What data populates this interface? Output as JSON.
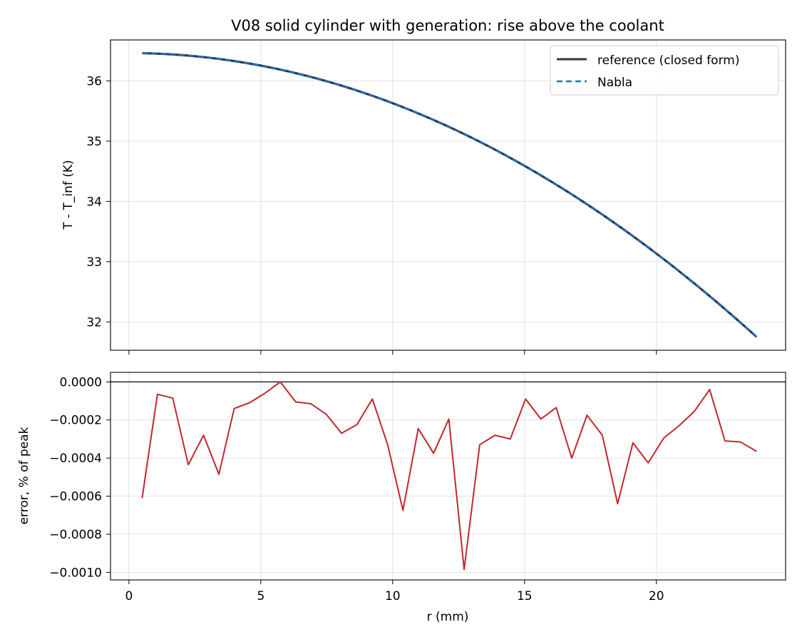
{
  "chart_data": [
    {
      "type": "line",
      "title": "V08 solid cylinder with generation: rise above the coolant",
      "xlabel": "",
      "ylabel": "T - T_inf (K)",
      "xlim": [
        -0.7,
        24.9
      ],
      "ylim": [
        31.53,
        36.68
      ],
      "x_ticks": [
        0,
        5,
        10,
        15,
        20
      ],
      "y_ticks": [
        32,
        33,
        34,
        35,
        36
      ],
      "y_tick_labels": [
        "32",
        "33",
        "34",
        "35",
        "36"
      ],
      "grid": true,
      "legend_position": "top-right",
      "x": [
        0.5,
        23.8
      ],
      "series": [
        {
          "name": "reference (closed form)",
          "style": "solid",
          "color": "#2e3a4a",
          "curve": "quadratic",
          "values": [
            36.46,
            31.75
          ]
        },
        {
          "name": "Nabla",
          "style": "dashed",
          "color": "#1f6fc5",
          "curve": "quadratic",
          "values": [
            36.46,
            31.75
          ]
        }
      ]
    },
    {
      "type": "line",
      "title": "",
      "xlabel": "r (mm)",
      "ylabel": "error, % of peak",
      "xlim": [
        -0.7,
        24.9
      ],
      "ylim": [
        -0.00104,
        5e-05
      ],
      "x_ticks": [
        0,
        5,
        10,
        15,
        20
      ],
      "x_tick_labels": [
        "0",
        "5",
        "10",
        "15",
        "20"
      ],
      "y_ticks": [
        0.0,
        -0.0002,
        -0.0004,
        -0.0006,
        -0.0008,
        -0.001
      ],
      "y_tick_labels": [
        "0.0000",
        "−0.0002",
        "−0.0004",
        "−0.0006",
        "−0.0008",
        "−0.0010"
      ],
      "grid": true,
      "zero_line": true,
      "color": "#c1272d",
      "x": [
        0.5,
        1.08,
        1.66,
        2.25,
        2.83,
        3.41,
        3.99,
        4.57,
        5.15,
        5.74,
        6.32,
        6.9,
        7.48,
        8.06,
        8.64,
        9.23,
        9.81,
        10.39,
        10.97,
        11.55,
        12.13,
        12.71,
        13.3,
        13.88,
        14.46,
        15.04,
        15.62,
        16.2,
        16.79,
        17.37,
        17.95,
        18.53,
        19.11,
        19.69,
        20.28,
        20.86,
        21.44,
        22.02,
        22.6,
        23.18,
        23.8
      ],
      "values": [
        -0.00061,
        -6.5e-05,
        -8.5e-05,
        -0.000435,
        -0.00028,
        -0.000485,
        -0.00014,
        -0.00011,
        -6e-05,
        0.0,
        -0.000105,
        -0.000115,
        -0.00017,
        -0.00027,
        -0.000225,
        -9e-05,
        -0.00033,
        -0.000675,
        -0.000245,
        -0.000375,
        -0.000195,
        -0.000985,
        -0.00033,
        -0.00028,
        -0.0003,
        -9e-05,
        -0.000195,
        -0.000135,
        -0.0004,
        -0.000175,
        -0.00028,
        -0.00064,
        -0.00032,
        -0.000425,
        -0.000295,
        -0.00023,
        -0.000155,
        -4e-05,
        -0.00031,
        -0.000315,
        -0.000365
      ]
    }
  ]
}
